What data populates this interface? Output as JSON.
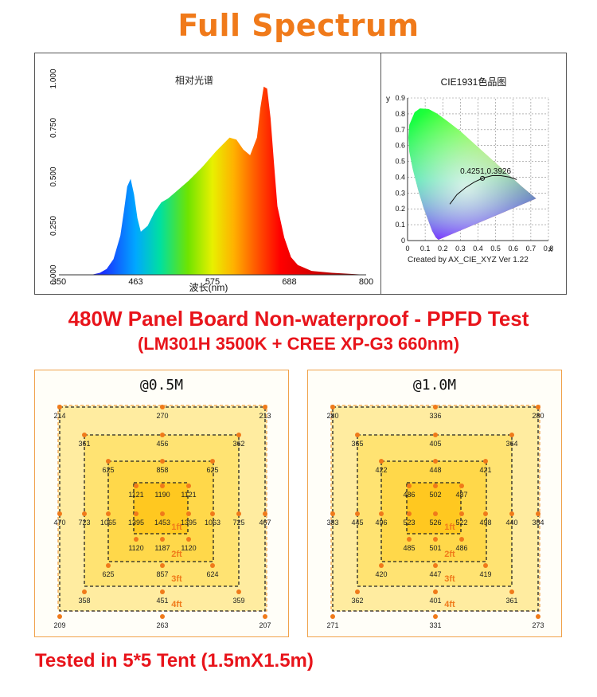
{
  "title": "Full Spectrum",
  "spectrum": {
    "title": "相对光谱",
    "xlabel": "波长(nm)",
    "x_ticks": [
      "350",
      "463",
      "575",
      "688",
      "800"
    ],
    "y_ticks": [
      "0.000",
      "0.250",
      "0.500",
      "0.750",
      "1.000"
    ]
  },
  "cie": {
    "title": "CIE1931色品图",
    "y_axis_label": "y",
    "x_axis_label": "x",
    "y_ticks": [
      "0",
      "0.1",
      "0.2",
      "0.3",
      "0.4",
      "0.5",
      "0.6",
      "0.7",
      "0.8",
      "0.9"
    ],
    "x_ticks": [
      "0",
      "0.1",
      "0.2",
      "0.3",
      "0.4",
      "0.5",
      "0.6",
      "0.7",
      "0.8"
    ],
    "point_label": "0.4251,0.3926",
    "credit": "Created by AX_CIE_XYZ Ver 1.22"
  },
  "heading1": "480W Panel Board Non-waterproof - PPFD Test",
  "heading2": "(LM301H 3500K + CREE XP-G3 660nm)",
  "footer": "Tested in 5*5 Tent (1.5mX1.5m)",
  "ppfd_labels": {
    "l1": "1ft",
    "l2": "2ft",
    "l3": "3ft",
    "l4": "4ft"
  },
  "chart_data": [
    {
      "type": "line",
      "title": "相对光谱",
      "xlabel": "波长(nm)",
      "ylabel": "",
      "xlim": [
        350,
        800
      ],
      "ylim": [
        0,
        1
      ],
      "x": [
        350,
        380,
        400,
        410,
        420,
        430,
        440,
        445,
        450,
        455,
        460,
        465,
        470,
        480,
        490,
        500,
        510,
        520,
        540,
        560,
        580,
        600,
        610,
        620,
        630,
        640,
        645,
        650,
        655,
        660,
        665,
        670,
        680,
        690,
        700,
        720,
        750,
        800
      ],
      "values": [
        0.0,
        0.0,
        0.002,
        0.01,
        0.03,
        0.08,
        0.2,
        0.32,
        0.45,
        0.49,
        0.41,
        0.29,
        0.22,
        0.25,
        0.32,
        0.37,
        0.39,
        0.42,
        0.48,
        0.55,
        0.63,
        0.7,
        0.69,
        0.64,
        0.61,
        0.7,
        0.85,
        0.96,
        0.95,
        0.8,
        0.57,
        0.35,
        0.19,
        0.09,
        0.05,
        0.02,
        0.01,
        0.0
      ]
    },
    {
      "type": "scatter",
      "title": "CIE1931色品图",
      "xlabel": "x",
      "ylabel": "y",
      "xlim": [
        0,
        0.8
      ],
      "ylim": [
        0,
        0.9
      ],
      "grid": true,
      "x": [
        0.4251
      ],
      "values": [
        0.3926
      ]
    },
    {
      "type": "table",
      "title": "@0.5M",
      "unit_marks": [
        "1ft",
        "2ft",
        "3ft",
        "4ft"
      ],
      "rows": [
        [
          "214",
          "",
          "",
          "",
          "",
          "",
          "270",
          "",
          "",
          "",
          "",
          "",
          "213"
        ],
        [
          "",
          "361",
          "",
          "",
          "",
          "",
          "456",
          "",
          "",
          "",
          "",
          "362",
          ""
        ],
        [
          "",
          "",
          "625",
          "",
          "",
          "",
          "858",
          "",
          "",
          "",
          "625",
          "",
          ""
        ],
        [
          "",
          "",
          "",
          "1121",
          "",
          "",
          "1190",
          "",
          "",
          "1121",
          "",
          "",
          ""
        ],
        [
          "470",
          "723",
          "1065",
          "1395",
          "",
          "",
          "1453",
          "",
          "",
          "1395",
          "1063",
          "725",
          "467"
        ],
        [
          "",
          "",
          "",
          "1120",
          "",
          "",
          "1187",
          "",
          "",
          "1120",
          "",
          "",
          ""
        ],
        [
          "",
          "",
          "625",
          "",
          "",
          "",
          "857",
          "",
          "",
          "",
          "624",
          "",
          ""
        ],
        [
          "",
          "358",
          "",
          "",
          "",
          "",
          "451",
          "",
          "",
          "",
          "",
          "359",
          ""
        ],
        [
          "209",
          "",
          "",
          "",
          "",
          "",
          "263",
          "",
          "",
          "",
          "",
          "",
          "207"
        ]
      ]
    },
    {
      "type": "table",
      "title": "@1.0M",
      "unit_marks": [
        "1ft",
        "2ft",
        "3ft",
        "4ft"
      ],
      "rows": [
        [
          "280",
          "",
          "",
          "",
          "",
          "",
          "336",
          "",
          "",
          "",
          "",
          "",
          "280"
        ],
        [
          "",
          "365",
          "",
          "",
          "",
          "",
          "405",
          "",
          "",
          "",
          "",
          "364",
          ""
        ],
        [
          "",
          "",
          "422",
          "",
          "",
          "",
          "448",
          "",
          "",
          "",
          "421",
          "",
          ""
        ],
        [
          "",
          "",
          "",
          "486",
          "",
          "",
          "502",
          "",
          "",
          "487",
          "",
          "",
          ""
        ],
        [
          "383",
          "445",
          "496",
          "523",
          "",
          "",
          "526",
          "",
          "",
          "522",
          "498",
          "440",
          "384"
        ],
        [
          "",
          "",
          "",
          "485",
          "",
          "",
          "501",
          "",
          "",
          "486",
          "",
          "",
          ""
        ],
        [
          "",
          "",
          "420",
          "",
          "",
          "",
          "447",
          "",
          "",
          "",
          "419",
          "",
          ""
        ],
        [
          "",
          "362",
          "",
          "",
          "",
          "",
          "401",
          "",
          "",
          "",
          "",
          "361",
          ""
        ],
        [
          "271",
          "",
          "",
          "",
          "",
          "",
          "331",
          "",
          "",
          "",
          "",
          "",
          "273"
        ]
      ]
    }
  ]
}
